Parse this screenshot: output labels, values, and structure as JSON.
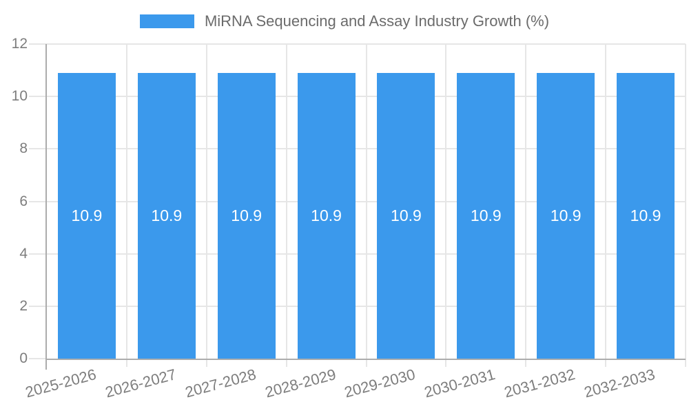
{
  "legend": {
    "label": "MiRNA Sequencing and Assay Industry Growth (%)"
  },
  "chart_data": {
    "type": "bar",
    "title": "MiRNA Sequencing and Assay Industry Growth (%)",
    "categories": [
      "2025-2026",
      "2026-2027",
      "2027-2028",
      "2028-2029",
      "2029-2030",
      "2030-2031",
      "2031-2032",
      "2032-2033"
    ],
    "values": [
      10.9,
      10.9,
      10.9,
      10.9,
      10.9,
      10.9,
      10.9,
      10.9
    ],
    "bar_labels": [
      "10.9",
      "10.9",
      "10.9",
      "10.9",
      "10.9",
      "10.9",
      "10.9",
      "10.9"
    ],
    "xlabel": "",
    "ylabel": "",
    "ylim": [
      0,
      12
    ],
    "yticks": [
      0,
      2,
      4,
      6,
      8,
      10,
      12
    ],
    "grid": true,
    "legend_position": "top-center",
    "colors": {
      "bar": "#3B99EC",
      "bar_label": "#FFFFFF",
      "grid": "#E6E6E6",
      "axis": "#ACACAC",
      "tick_label": "#7D7D7D",
      "title": "#6B6B6B",
      "background": "#FFFFFF"
    }
  }
}
